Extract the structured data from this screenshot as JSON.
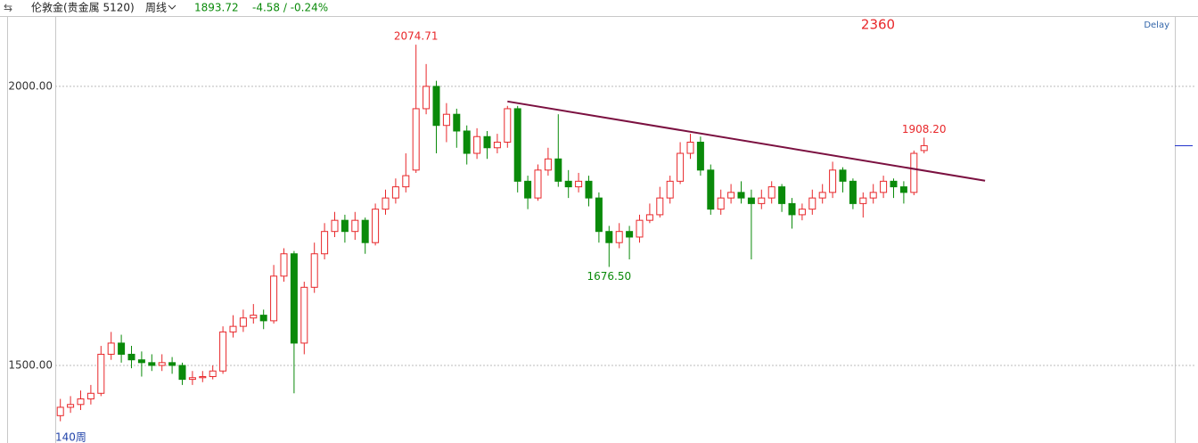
{
  "chart_data": {
    "type": "candlestick",
    "header": {
      "symbol": "伦敦金(贵金属 5120)",
      "period": "周线",
      "last": 1893.72,
      "change": "-4.58 / -0.24%"
    },
    "note": "2360",
    "delay": "Delay",
    "bar_count_label": "140周",
    "ylim": [
      1361,
      2126
    ],
    "yticks": [
      {
        "value": 2000,
        "label": "2000.00"
      },
      {
        "value": 1500,
        "label": "1500.00"
      }
    ],
    "grid": true,
    "up_color": "#e8272a",
    "down_color": "#0a8a0a",
    "open": [
      1410,
      1425,
      1430,
      1440,
      1450,
      1520,
      1540,
      1520,
      1510,
      1505,
      1500,
      1505,
      1500,
      1475,
      1478,
      1480,
      1490,
      1560,
      1570,
      1585,
      1590,
      1580,
      1660,
      1700,
      1540,
      1640,
      1700,
      1740,
      1760,
      1740,
      1760,
      1720,
      1780,
      1800,
      1820,
      1850,
      1960,
      2000,
      1930,
      1950,
      1920,
      1880,
      1910,
      1890,
      1900,
      1960,
      1830,
      1800,
      1850,
      1870,
      1830,
      1820,
      1830,
      1800,
      1740,
      1720,
      1740,
      1730,
      1760,
      1770,
      1800,
      1830,
      1880,
      1900,
      1850,
      1780,
      1800,
      1810,
      1800,
      1790,
      1800,
      1820,
      1790,
      1770,
      1780,
      1800,
      1810,
      1850,
      1830,
      1790,
      1800,
      1810,
      1830,
      1820,
      1810,
      1885
    ],
    "high": [
      1440,
      1445,
      1455,
      1465,
      1535,
      1560,
      1555,
      1535,
      1525,
      1520,
      1520,
      1515,
      1505,
      1490,
      1490,
      1500,
      1570,
      1590,
      1600,
      1610,
      1600,
      1680,
      1710,
      1705,
      1650,
      1720,
      1755,
      1775,
      1770,
      1775,
      1765,
      1790,
      1815,
      1835,
      1880,
      2074.71,
      2040,
      2010,
      1970,
      1960,
      1930,
      1925,
      1920,
      1915,
      1965,
      1965,
      1840,
      1860,
      1890,
      1950,
      1850,
      1845,
      1840,
      1810,
      1750,
      1755,
      1750,
      1770,
      1790,
      1820,
      1840,
      1900,
      1915,
      1910,
      1860,
      1815,
      1825,
      1830,
      1815,
      1815,
      1830,
      1825,
      1800,
      1790,
      1815,
      1825,
      1865,
      1855,
      1835,
      1810,
      1825,
      1840,
      1835,
      1830,
      1885,
      1908.2
    ],
    "low": [
      1400,
      1415,
      1420,
      1430,
      1445,
      1510,
      1505,
      1495,
      1480,
      1490,
      1490,
      1485,
      1465,
      1465,
      1470,
      1475,
      1485,
      1550,
      1560,
      1575,
      1565,
      1575,
      1650,
      1450,
      1520,
      1630,
      1690,
      1730,
      1720,
      1725,
      1700,
      1715,
      1770,
      1790,
      1810,
      1845,
      1950,
      1880,
      1900,
      1890,
      1860,
      1870,
      1870,
      1880,
      1890,
      1810,
      1780,
      1795,
      1840,
      1820,
      1800,
      1810,
      1785,
      1720,
      1676.5,
      1710,
      1690,
      1720,
      1755,
      1765,
      1790,
      1825,
      1870,
      1840,
      1770,
      1770,
      1790,
      1790,
      1690,
      1780,
      1790,
      1775,
      1745,
      1760,
      1770,
      1790,
      1800,
      1810,
      1780,
      1765,
      1790,
      1800,
      1800,
      1790,
      1805,
      1880
    ],
    "close": [
      1425,
      1430,
      1440,
      1450,
      1520,
      1540,
      1520,
      1510,
      1505,
      1500,
      1505,
      1500,
      1475,
      1478,
      1480,
      1490,
      1560,
      1570,
      1585,
      1590,
      1580,
      1660,
      1700,
      1540,
      1640,
      1700,
      1740,
      1760,
      1740,
      1760,
      1720,
      1780,
      1800,
      1820,
      1840,
      1960,
      2000,
      1930,
      1950,
      1920,
      1880,
      1910,
      1890,
      1900,
      1960,
      1830,
      1800,
      1850,
      1870,
      1830,
      1820,
      1830,
      1800,
      1740,
      1720,
      1740,
      1730,
      1760,
      1770,
      1800,
      1830,
      1880,
      1900,
      1850,
      1780,
      1800,
      1810,
      1800,
      1790,
      1800,
      1820,
      1790,
      1770,
      1780,
      1800,
      1810,
      1850,
      1830,
      1790,
      1800,
      1810,
      1830,
      1820,
      1810,
      1880,
      1893.72
    ],
    "annotations": [
      {
        "value": 2074.71,
        "label": "2074.71"
      },
      {
        "value": 1676.5,
        "label": "1676.50"
      },
      {
        "value": 1908.2,
        "label": "1908.20"
      }
    ],
    "trendline": {
      "color": "#7b1040",
      "x": [
        44,
        91
      ],
      "values": [
        1973,
        1831
      ]
    }
  }
}
